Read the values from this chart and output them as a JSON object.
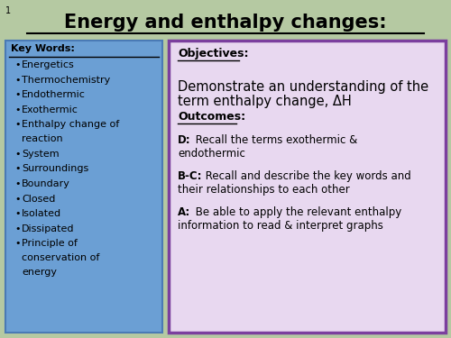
{
  "title": "Energy and enthalpy changes:",
  "slide_number": "1",
  "bg_color": "#b5c9a2",
  "title_color": "#000000",
  "title_fontsize": 15,
  "left_box": {
    "bg_color": "#6b9fd4",
    "border_color": "#4a7ab5",
    "header": "Key Words:",
    "items": [
      "Energetics",
      "Thermochemistry",
      "Endothermic",
      "Exothermic",
      "Enthalpy change of\nreaction",
      "System",
      "Surroundings",
      "Boundary",
      "Closed",
      "Isolated",
      "Dissipated",
      "Principle of\nconservation of\nenergy"
    ]
  },
  "right_box": {
    "bg_color": "#e8d8f0",
    "border_color": "#7b3f9e",
    "objectives_label": "Objectives:",
    "objectives_text": "Demonstrate an understanding of the\nterm enthalpy change, ΔH",
    "outcomes_label": "Outcomes:",
    "d_label": "D:",
    "d_text": " Recall the terms exothermic &\nendothermic",
    "bc_label": "B-C:",
    "bc_text": " Recall and describe the key words and\ntheir relationships to each other",
    "a_label": "A:",
    "a_text": " Be able to apply the relevant enthalpy\ninformation to read & interpret graphs"
  }
}
